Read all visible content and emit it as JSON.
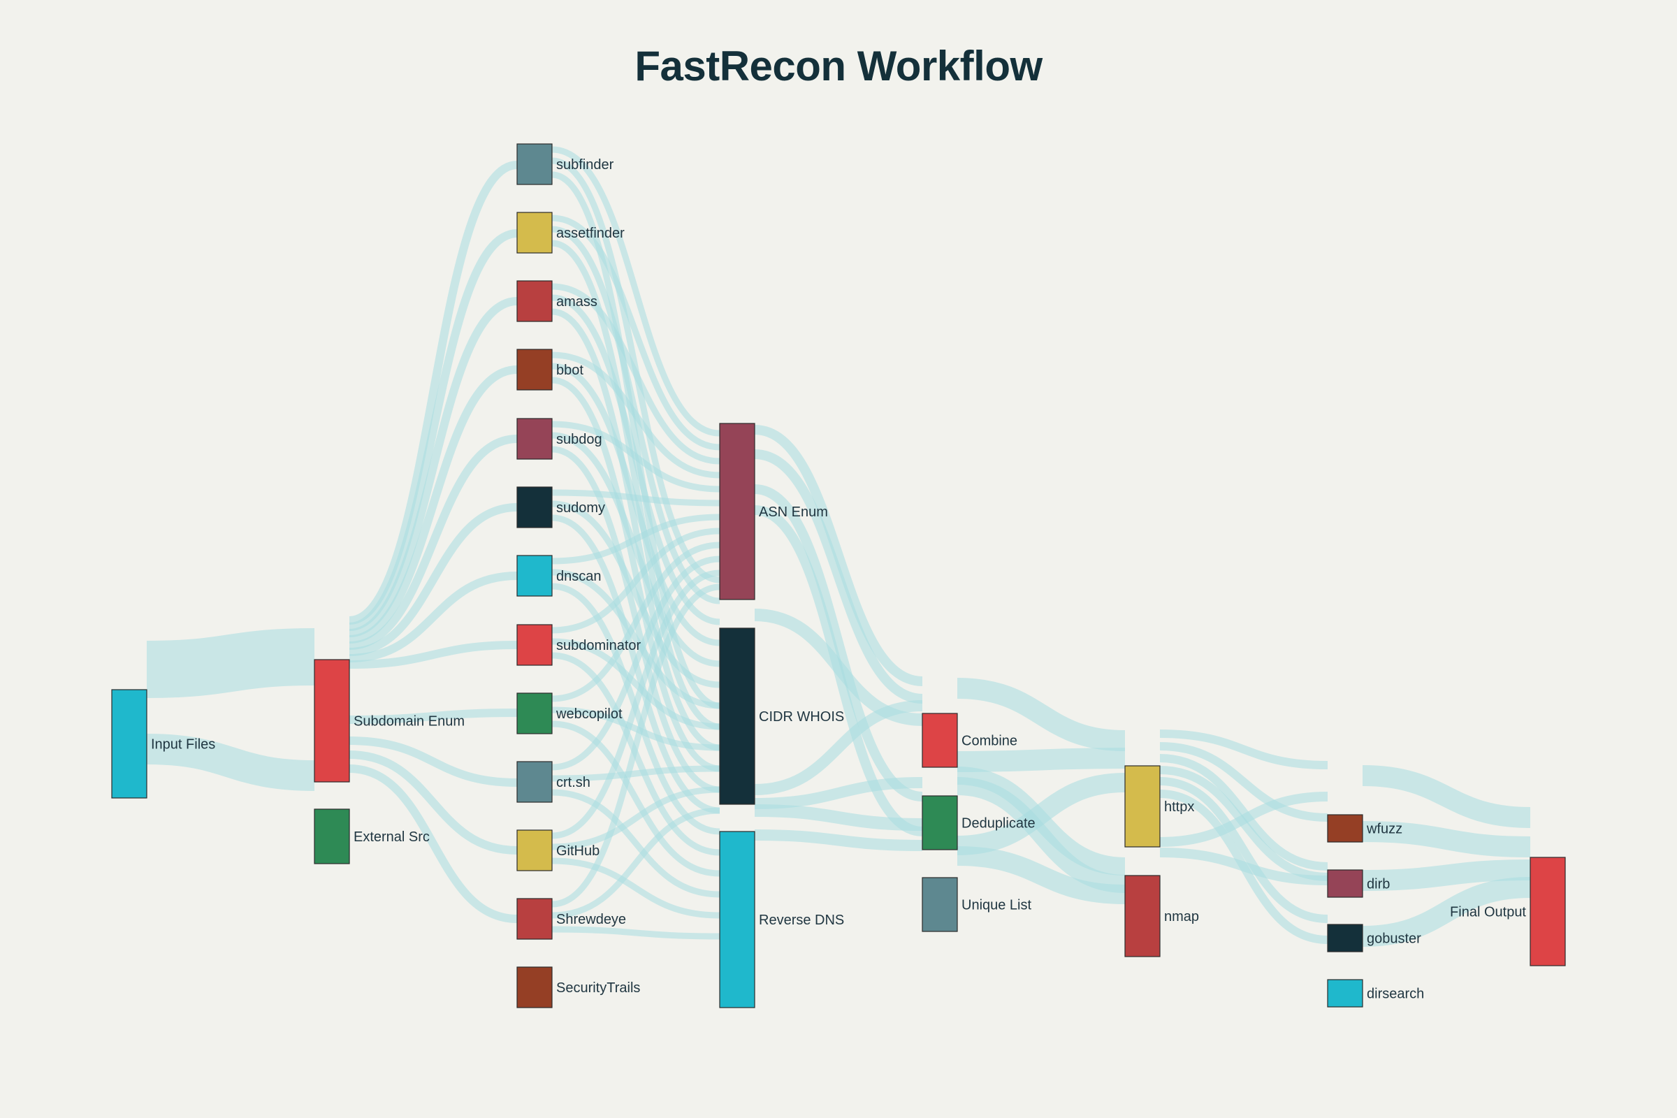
{
  "title": "FastRecon Workflow",
  "colors": {
    "background": "#f2f2ed",
    "link": "#a8dde0",
    "title": "#14303a"
  },
  "nodes": [
    {
      "id": "input_files",
      "label": "Input Files",
      "color": "#1fb8cc"
    },
    {
      "id": "subdomain_enum",
      "label": "Subdomain Enum",
      "color": "#dd4446"
    },
    {
      "id": "external_src",
      "label": "External Src",
      "color": "#2e8a55"
    },
    {
      "id": "subfinder",
      "label": "subfinder",
      "color": "#5e8890"
    },
    {
      "id": "assetfinder",
      "label": "assetfinder",
      "color": "#d4bb4c"
    },
    {
      "id": "amass",
      "label": "amass",
      "color": "#b84040"
    },
    {
      "id": "bbot",
      "label": "bbot",
      "color": "#953f25"
    },
    {
      "id": "subdog",
      "label": "subdog",
      "color": "#954457"
    },
    {
      "id": "sudomy",
      "label": "sudomy",
      "color": "#14303a"
    },
    {
      "id": "dnscan",
      "label": "dnscan",
      "color": "#1fb8cc"
    },
    {
      "id": "subdominator",
      "label": "subdominator",
      "color": "#dd4446"
    },
    {
      "id": "webcopilot",
      "label": "webcopilot",
      "color": "#2e8a55"
    },
    {
      "id": "crtsh",
      "label": "crt.sh",
      "color": "#5e8890"
    },
    {
      "id": "github",
      "label": "GitHub",
      "color": "#d4bb4c"
    },
    {
      "id": "shrewdeye",
      "label": "Shrewdeye",
      "color": "#b84040"
    },
    {
      "id": "securitytrails",
      "label": "SecurityTrails",
      "color": "#953f25"
    },
    {
      "id": "asn_enum",
      "label": "ASN Enum",
      "color": "#954457"
    },
    {
      "id": "cidr_whois",
      "label": "CIDR WHOIS",
      "color": "#14303a"
    },
    {
      "id": "reverse_dns",
      "label": "Reverse DNS",
      "color": "#1fb8cc"
    },
    {
      "id": "combine",
      "label": "Combine",
      "color": "#dd4446"
    },
    {
      "id": "deduplicate",
      "label": "Deduplicate",
      "color": "#2e8a55"
    },
    {
      "id": "unique_list",
      "label": "Unique List",
      "color": "#5e8890"
    },
    {
      "id": "httpx",
      "label": "httpx",
      "color": "#d4bb4c"
    },
    {
      "id": "nmap",
      "label": "nmap",
      "color": "#b84040"
    },
    {
      "id": "wfuzz",
      "label": "wfuzz",
      "color": "#953f25"
    },
    {
      "id": "dirb",
      "label": "dirb",
      "color": "#954457"
    },
    {
      "id": "gobuster",
      "label": "gobuster",
      "color": "#14303a"
    },
    {
      "id": "dirsearch",
      "label": "dirsearch",
      "color": "#1fb8cc"
    },
    {
      "id": "final_output",
      "label": "Final Output",
      "color": "#dd4446"
    }
  ],
  "links": [
    {
      "source": "input_files",
      "target": "subdomain_enum",
      "value": 2
    },
    {
      "source": "input_files",
      "target": "subdomain_enum",
      "value": 1.3
    },
    {
      "source": "subdomain_enum",
      "target": "subfinder",
      "value": 0.3
    },
    {
      "source": "subdomain_enum",
      "target": "assetfinder",
      "value": 0.3
    },
    {
      "source": "subdomain_enum",
      "target": "amass",
      "value": 0.3
    },
    {
      "source": "subdomain_enum",
      "target": "bbot",
      "value": 0.3
    },
    {
      "source": "subdomain_enum",
      "target": "subdog",
      "value": 0.3
    },
    {
      "source": "subdomain_enum",
      "target": "sudomy",
      "value": 0.3
    },
    {
      "source": "subdomain_enum",
      "target": "dnscan",
      "value": 0.3
    },
    {
      "source": "subdomain_enum",
      "target": "subdominator",
      "value": 0.3
    },
    {
      "source": "subdomain_enum",
      "target": "webcopilot",
      "value": 0.3
    },
    {
      "source": "subdomain_enum",
      "target": "crtsh",
      "value": 0.3
    },
    {
      "source": "subdomain_enum",
      "target": "github",
      "value": 0.3
    },
    {
      "source": "subdomain_enum",
      "target": "shrewdeye",
      "value": 0.3
    },
    {
      "source": "subfinder",
      "target": "asn_enum",
      "value": 0.1
    },
    {
      "source": "subfinder",
      "target": "cidr_whois",
      "value": 0.1
    },
    {
      "source": "subfinder",
      "target": "reverse_dns",
      "value": 0.1
    },
    {
      "source": "assetfinder",
      "target": "asn_enum",
      "value": 0.1
    },
    {
      "source": "assetfinder",
      "target": "cidr_whois",
      "value": 0.1
    },
    {
      "source": "assetfinder",
      "target": "reverse_dns",
      "value": 0.1
    },
    {
      "source": "amass",
      "target": "asn_enum",
      "value": 0.1
    },
    {
      "source": "amass",
      "target": "cidr_whois",
      "value": 0.1
    },
    {
      "source": "amass",
      "target": "reverse_dns",
      "value": 0.1
    },
    {
      "source": "bbot",
      "target": "asn_enum",
      "value": 0.1
    },
    {
      "source": "bbot",
      "target": "cidr_whois",
      "value": 0.1
    },
    {
      "source": "bbot",
      "target": "reverse_dns",
      "value": 0.1
    },
    {
      "source": "subdog",
      "target": "asn_enum",
      "value": 0.1
    },
    {
      "source": "subdog",
      "target": "cidr_whois",
      "value": 0.1
    },
    {
      "source": "subdog",
      "target": "reverse_dns",
      "value": 0.1
    },
    {
      "source": "sudomy",
      "target": "asn_enum",
      "value": 0.1
    },
    {
      "source": "sudomy",
      "target": "cidr_whois",
      "value": 0.1
    },
    {
      "source": "sudomy",
      "target": "reverse_dns",
      "value": 0.1
    },
    {
      "source": "dnscan",
      "target": "asn_enum",
      "value": 0.1
    },
    {
      "source": "dnscan",
      "target": "cidr_whois",
      "value": 0.1
    },
    {
      "source": "dnscan",
      "target": "reverse_dns",
      "value": 0.1
    },
    {
      "source": "subdominator",
      "target": "asn_enum",
      "value": 0.1
    },
    {
      "source": "subdominator",
      "target": "cidr_whois",
      "value": 0.1
    },
    {
      "source": "subdominator",
      "target": "reverse_dns",
      "value": 0.1
    },
    {
      "source": "webcopilot",
      "target": "asn_enum",
      "value": 0.1
    },
    {
      "source": "webcopilot",
      "target": "cidr_whois",
      "value": 0.1
    },
    {
      "source": "webcopilot",
      "target": "reverse_dns",
      "value": 0.1
    },
    {
      "source": "crtsh",
      "target": "asn_enum",
      "value": 0.1
    },
    {
      "source": "crtsh",
      "target": "cidr_whois",
      "value": 0.1
    },
    {
      "source": "crtsh",
      "target": "reverse_dns",
      "value": 0.1
    },
    {
      "source": "github",
      "target": "asn_enum",
      "value": 0.1
    },
    {
      "source": "github",
      "target": "cidr_whois",
      "value": 0.1
    },
    {
      "source": "github",
      "target": "reverse_dns",
      "value": 0.1
    },
    {
      "source": "shrewdeye",
      "target": "asn_enum",
      "value": 0.1
    },
    {
      "source": "shrewdeye",
      "target": "cidr_whois",
      "value": 0.1
    },
    {
      "source": "shrewdeye",
      "target": "reverse_dns",
      "value": 0.1
    },
    {
      "source": "asn_enum",
      "target": "combine",
      "value": 0.15
    },
    {
      "source": "asn_enum",
      "target": "combine",
      "value": 0.15
    },
    {
      "source": "asn_enum",
      "target": "deduplicate",
      "value": 0.15
    },
    {
      "source": "asn_enum",
      "target": "deduplicate",
      "value": 0.15
    },
    {
      "source": "cidr_whois",
      "target": "combine",
      "value": 0.2
    },
    {
      "source": "cidr_whois",
      "target": "combine",
      "value": 0.2
    },
    {
      "source": "cidr_whois",
      "target": "deduplicate",
      "value": 0.2
    },
    {
      "source": "reverse_dns",
      "target": "combine",
      "value": 0.2
    },
    {
      "source": "reverse_dns",
      "target": "deduplicate",
      "value": 0.2
    },
    {
      "source": "combine",
      "target": "httpx",
      "value": 0.3
    },
    {
      "source": "combine",
      "target": "httpx",
      "value": 0.3
    },
    {
      "source": "combine",
      "target": "nmap",
      "value": 0.3
    },
    {
      "source": "combine",
      "target": "nmap",
      "value": 0.3
    },
    {
      "source": "deduplicate",
      "target": "httpx",
      "value": 0.3
    },
    {
      "source": "deduplicate",
      "target": "nmap",
      "value": 0.3
    },
    {
      "source": "httpx",
      "target": "wfuzz",
      "value": 0.15
    },
    {
      "source": "httpx",
      "target": "wfuzz",
      "value": 0.15
    },
    {
      "source": "httpx",
      "target": "dirb",
      "value": 0.15
    },
    {
      "source": "httpx",
      "target": "dirb",
      "value": 0.15
    },
    {
      "source": "httpx",
      "target": "gobuster",
      "value": 0.15
    },
    {
      "source": "httpx",
      "target": "gobuster",
      "value": 0.15
    },
    {
      "source": "nmap",
      "target": "wfuzz",
      "value": 0.2
    },
    {
      "source": "nmap",
      "target": "dirb",
      "value": 0.2
    },
    {
      "source": "wfuzz",
      "target": "final_output",
      "value": 0.3
    },
    {
      "source": "dirb",
      "target": "final_output",
      "value": 0.3
    },
    {
      "source": "gobuster",
      "target": "final_output",
      "value": 0.3
    },
    {
      "source": "gobuster",
      "target": "final_output",
      "value": 0.3
    }
  ]
}
